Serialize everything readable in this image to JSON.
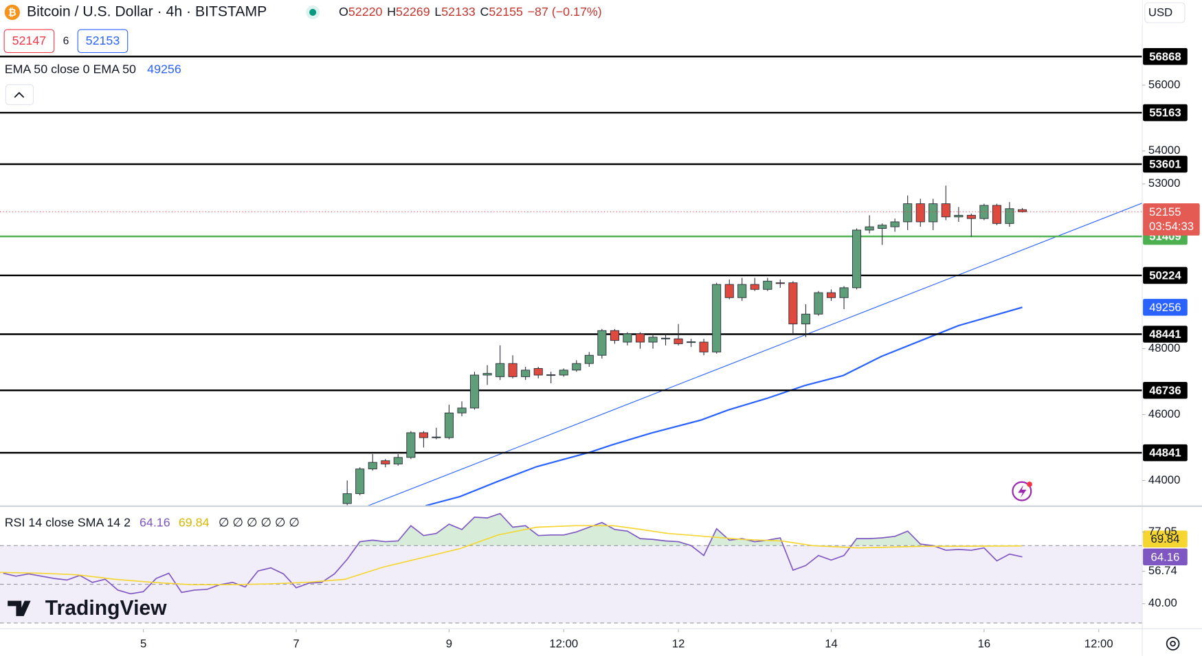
{
  "chart_data": [
    {
      "type": "candlestick",
      "title": "Bitcoin / U.S. Dollar · 4h · BITSTAMP",
      "ohlc_prefixes": [
        "O",
        "H",
        "L",
        "C"
      ],
      "change_label": "−87 (−0.17%)",
      "currency": "USD",
      "quote": {
        "bid": 52147,
        "spread": 6,
        "ask": 52153
      },
      "countdown": "03:54:33",
      "watermark": "TradingView",
      "up_color": "#5e9e78",
      "down_color": "#de4a3e",
      "border_color": "#2a2e39",
      "x": [
        7.667,
        7.833,
        8,
        8.167,
        8.333,
        8.5,
        8.667,
        8.833,
        9,
        9.167,
        9.333,
        9.5,
        9.667,
        9.833,
        10,
        10.167,
        10.333,
        10.5,
        10.667,
        10.833,
        11,
        11.167,
        11.333,
        11.5,
        11.667,
        11.833,
        12,
        12.167,
        12.333,
        12.5,
        12.667,
        12.833,
        13,
        13.167,
        13.333,
        13.5,
        13.667,
        13.833,
        14,
        14.167,
        14.333,
        14.5,
        14.667,
        14.833,
        15,
        15.167,
        15.333,
        15.5,
        15.667,
        15.833,
        16,
        16.167,
        16.333,
        16.5
      ],
      "open": [
        43300,
        43600,
        44350,
        44600,
        44500,
        44700,
        45450,
        45300,
        45300,
        46050,
        46200,
        47200,
        47150,
        47550,
        47150,
        47400,
        47200,
        47200,
        47350,
        47550,
        47800,
        48550,
        48200,
        48450,
        48200,
        48300,
        48300,
        48200,
        48200,
        47900,
        49950,
        49550,
        49950,
        49800,
        50000,
        50000,
        48750,
        49050,
        49700,
        49550,
        49850,
        51600,
        51650,
        51700,
        51850,
        52400,
        51850,
        52400,
        52000,
        52050,
        51950,
        52350,
        51800,
        52220
      ],
      "high": [
        44000,
        44400,
        44800,
        44650,
        44800,
        45500,
        45500,
        45600,
        46300,
        46400,
        47300,
        47500,
        48100,
        47800,
        47450,
        47450,
        47300,
        47400,
        47650,
        47900,
        48600,
        48600,
        48500,
        48500,
        48450,
        48450,
        48750,
        48300,
        48300,
        50000,
        50100,
        50150,
        50150,
        50150,
        50100,
        50050,
        49350,
        49750,
        49800,
        49900,
        51650,
        52050,
        51800,
        51950,
        52650,
        52550,
        52550,
        52950,
        52300,
        52100,
        52400,
        52400,
        52450,
        52269
      ],
      "low": [
        43250,
        43550,
        44300,
        44400,
        44450,
        44650,
        45000,
        45250,
        45250,
        45950,
        46150,
        46900,
        47050,
        47100,
        47050,
        47100,
        46950,
        47150,
        47300,
        47450,
        47700,
        48150,
        48100,
        48000,
        48000,
        48100,
        48100,
        48050,
        47800,
        47850,
        49500,
        49450,
        49750,
        49750,
        49850,
        48450,
        48350,
        49000,
        49450,
        49200,
        49800,
        51500,
        51150,
        51550,
        51600,
        51700,
        51600,
        51900,
        51850,
        51400,
        51900,
        51750,
        51700,
        52133
      ],
      "close": [
        43600,
        44350,
        44550,
        44500,
        44700,
        45450,
        45300,
        45320,
        46050,
        46200,
        47200,
        47250,
        47550,
        47150,
        47350,
        47200,
        47210,
        47350,
        47550,
        47800,
        48550,
        48250,
        48450,
        48200,
        48350,
        48320,
        48150,
        48210,
        47900,
        49950,
        49550,
        49950,
        49800,
        50050,
        49980,
        48750,
        49050,
        49700,
        49550,
        49850,
        51600,
        51700,
        51750,
        51850,
        52400,
        51850,
        52400,
        52000,
        52050,
        51950,
        52350,
        51800,
        52250,
        52155
      ],
      "xlim": [
        3.124,
        18.069
      ],
      "xticks": [
        5,
        7,
        9,
        {
          "value": 10.5,
          "label": "12:00"
        },
        12,
        14,
        16,
        {
          "value": 17.5,
          "label": "12:00"
        }
      ],
      "ylim": [
        43233,
        58581
      ],
      "yticks": [
        44000,
        46000,
        48000,
        53000,
        54000,
        56000
      ],
      "levels": [
        56868,
        55163,
        53601,
        51409,
        50224,
        48441,
        46736,
        44841
      ],
      "level_colors": [
        "#000000",
        "#000000",
        "#000000",
        "#4caf50",
        "#000000",
        "#000000",
        "#000000",
        "#000000"
      ],
      "ema": {
        "name": "EMA 50 close 0 EMA 50",
        "color": "#2962ff",
        "x": [
          8.691,
          9.142,
          9.644,
          10.145,
          10.847,
          11.148,
          11.65,
          12.302,
          12.653,
          13.154,
          13.656,
          14.157,
          14.659,
          15.16,
          15.662,
          16.5
        ],
        "values": [
          43233,
          43512,
          43977,
          44419,
          44860,
          45093,
          45442,
          45837,
          46140,
          46488,
          46884,
          47186,
          47767,
          48233,
          48698,
          49256
        ]
      },
      "trendline": {
        "color": "#2962ff",
        "x": [
          7.939,
          18.069
        ],
        "values": [
          43233,
          52419
        ]
      }
    },
    {
      "type": "line",
      "name": "RSI 14 close SMA 14 2",
      "legend_extra": "∅ ∅ ∅ ∅ ∅ ∅",
      "ylim": [
        27.23,
        90.59
      ],
      "yticks": [
        77.05,
        56.74,
        {
          "value": 40,
          "label": "40.00"
        }
      ],
      "bands": [
        70,
        50,
        30
      ],
      "band_color": "#7e57c2",
      "series": [
        {
          "color": "#7e57c2",
          "x": [
            3.167,
            3.333,
            3.5,
            3.667,
            3.833,
            4,
            4.167,
            4.333,
            4.5,
            4.667,
            4.833,
            5,
            5.167,
            5.333,
            5.5,
            5.667,
            5.833,
            6,
            6.167,
            6.333,
            6.5,
            6.667,
            6.833,
            7,
            7.167,
            7.333,
            7.5,
            7.667,
            7.833,
            8,
            8.167,
            8.333,
            8.5,
            8.667,
            8.833,
            9,
            9.167,
            9.333,
            9.5,
            9.667,
            9.833,
            10,
            10.167,
            10.333,
            10.5,
            10.667,
            10.833,
            11,
            11.167,
            11.333,
            11.5,
            11.667,
            11.833,
            12,
            12.167,
            12.333,
            12.5,
            12.667,
            12.833,
            13,
            13.167,
            13.333,
            13.5,
            13.667,
            13.833,
            14,
            14.167,
            14.333,
            14.5,
            14.667,
            14.833,
            15,
            15.167,
            15.333,
            15.5,
            15.667,
            15.833,
            16,
            16.167,
            16.333,
            16.5
          ],
          "values": [
            55.7,
            54.2,
            55.4,
            54.2,
            53.0,
            52.2,
            54.6,
            51.0,
            52.6,
            47.0,
            45.1,
            46.2,
            53.0,
            55.7,
            45.8,
            47.0,
            47.4,
            49.8,
            51.0,
            48.6,
            56.9,
            58.5,
            55.4,
            48.2,
            50.6,
            51.0,
            55.4,
            62.9,
            72.0,
            72.8,
            72.0,
            72.4,
            80.3,
            75.2,
            76.3,
            81.1,
            78.3,
            84.7,
            84.3,
            86.6,
            79.5,
            80.3,
            75.2,
            75.5,
            75.5,
            77.1,
            79.5,
            81.9,
            78.3,
            77.5,
            73.6,
            73.2,
            72.4,
            72.0,
            70.0,
            64.9,
            78.7,
            72.8,
            73.6,
            72.0,
            72.8,
            74.0,
            57.3,
            59.7,
            64.9,
            62.5,
            64.9,
            73.6,
            73.6,
            74.0,
            74.8,
            77.5,
            70.8,
            70.0,
            67.6,
            68.0,
            67.6,
            68.8,
            62.1,
            65.6,
            64.16
          ]
        },
        {
          "color": "#f5d630",
          "x": [
            3.124,
            3.626,
            4.127,
            4.629,
            5.13,
            5.632,
            6.133,
            6.635,
            7.136,
            7.638,
            8.139,
            8.641,
            9.142,
            9.644,
            10.145,
            10.647,
            11.148,
            11.449,
            11.851,
            12.352,
            12.854,
            13.355,
            13.756,
            14.358,
            15.16,
            16.494
          ],
          "values": [
            56.14,
            55.74,
            54.95,
            52.57,
            50.99,
            49.8,
            49.8,
            50.2,
            50.99,
            52.57,
            58.91,
            63.66,
            68.42,
            75.54,
            79.5,
            80.3,
            80.3,
            78.71,
            76.34,
            74.75,
            73.17,
            72.38,
            70.0,
            68.81,
            69.6,
            69.84
          ]
        }
      ]
    }
  ]
}
